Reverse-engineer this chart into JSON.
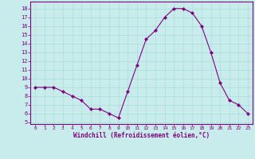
{
  "x": [
    0,
    1,
    2,
    3,
    4,
    5,
    6,
    7,
    8,
    9,
    10,
    11,
    12,
    13,
    14,
    15,
    16,
    17,
    18,
    19,
    20,
    21,
    22,
    23
  ],
  "y": [
    9,
    9,
    9,
    8.5,
    8,
    7.5,
    6.5,
    6.5,
    6,
    5.5,
    8.5,
    11.5,
    14.5,
    15.5,
    17,
    18,
    18,
    17.5,
    16,
    13,
    9.5,
    7.5,
    7,
    6
  ],
  "line_color": "#800080",
  "marker": "D",
  "marker_size": 2,
  "bg_color": "#c8ecec",
  "grid_color": "#aadddd",
  "xlabel": "Windchill (Refroidissement éolien,°C)",
  "xlabel_color": "#800080",
  "tick_color": "#800080",
  "ylim": [
    4.8,
    18.8
  ],
  "xlim": [
    -0.5,
    23.5
  ],
  "yticks": [
    5,
    6,
    7,
    8,
    9,
    10,
    11,
    12,
    13,
    14,
    15,
    16,
    17,
    18
  ],
  "xticks": [
    0,
    1,
    2,
    3,
    4,
    5,
    6,
    7,
    8,
    9,
    10,
    11,
    12,
    13,
    14,
    15,
    16,
    17,
    18,
    19,
    20,
    21,
    22,
    23
  ]
}
